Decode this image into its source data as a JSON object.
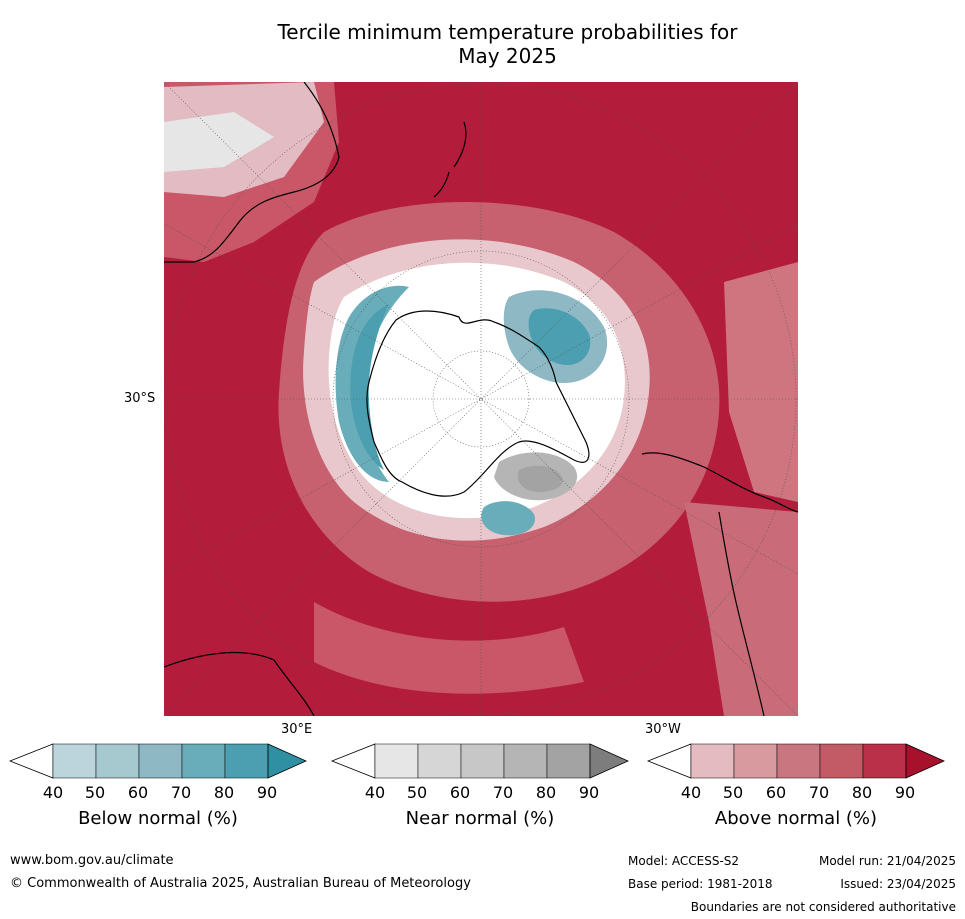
{
  "title": {
    "line1": "Tercile minimum temperature probabilities for",
    "line2": "May 2025"
  },
  "map": {
    "lat_label": "30°S",
    "lon_labels": {
      "east": "30°E",
      "west": "30°W"
    },
    "colors": {
      "above_dominant": "#b41c3c",
      "below_patch": "#5aa8b6",
      "near_patch": "#a3a3a3"
    }
  },
  "legends": [
    {
      "title": "Below normal (%)",
      "ticks": [
        "40",
        "50",
        "60",
        "70",
        "80",
        "90"
      ],
      "colors": [
        "#ffffff",
        "#bcd5dc",
        "#a6c8cf",
        "#8db8c4",
        "#6aadba",
        "#4b9fb0",
        "#2f8fa3"
      ]
    },
    {
      "title": "Near normal (%)",
      "ticks": [
        "40",
        "50",
        "60",
        "70",
        "80",
        "90"
      ],
      "colors": [
        "#ffffff",
        "#e6e6e6",
        "#d6d6d6",
        "#c7c7c7",
        "#b5b5b5",
        "#a3a3a3",
        "#7d7d7d"
      ]
    },
    {
      "title": "Above normal (%)",
      "ticks": [
        "40",
        "50",
        "60",
        "70",
        "80",
        "90"
      ],
      "colors": [
        "#ffffff",
        "#e4bbc1",
        "#d8999f",
        "#c97680",
        "#c35b67",
        "#ba3049",
        "#a8112c"
      ]
    }
  ],
  "footer": {
    "url": "www.bom.gov.au/climate",
    "copyright": "© Commonwealth of Australia 2025, Australian Bureau of Meteorology",
    "model": "Model: ACCESS-S2",
    "base_period": "Base period: 1981-2018",
    "model_run": "Model run: 21/04/2025",
    "issued": "Issued: 23/04/2025",
    "disclaimer": "Boundaries are not considered authoritative"
  }
}
